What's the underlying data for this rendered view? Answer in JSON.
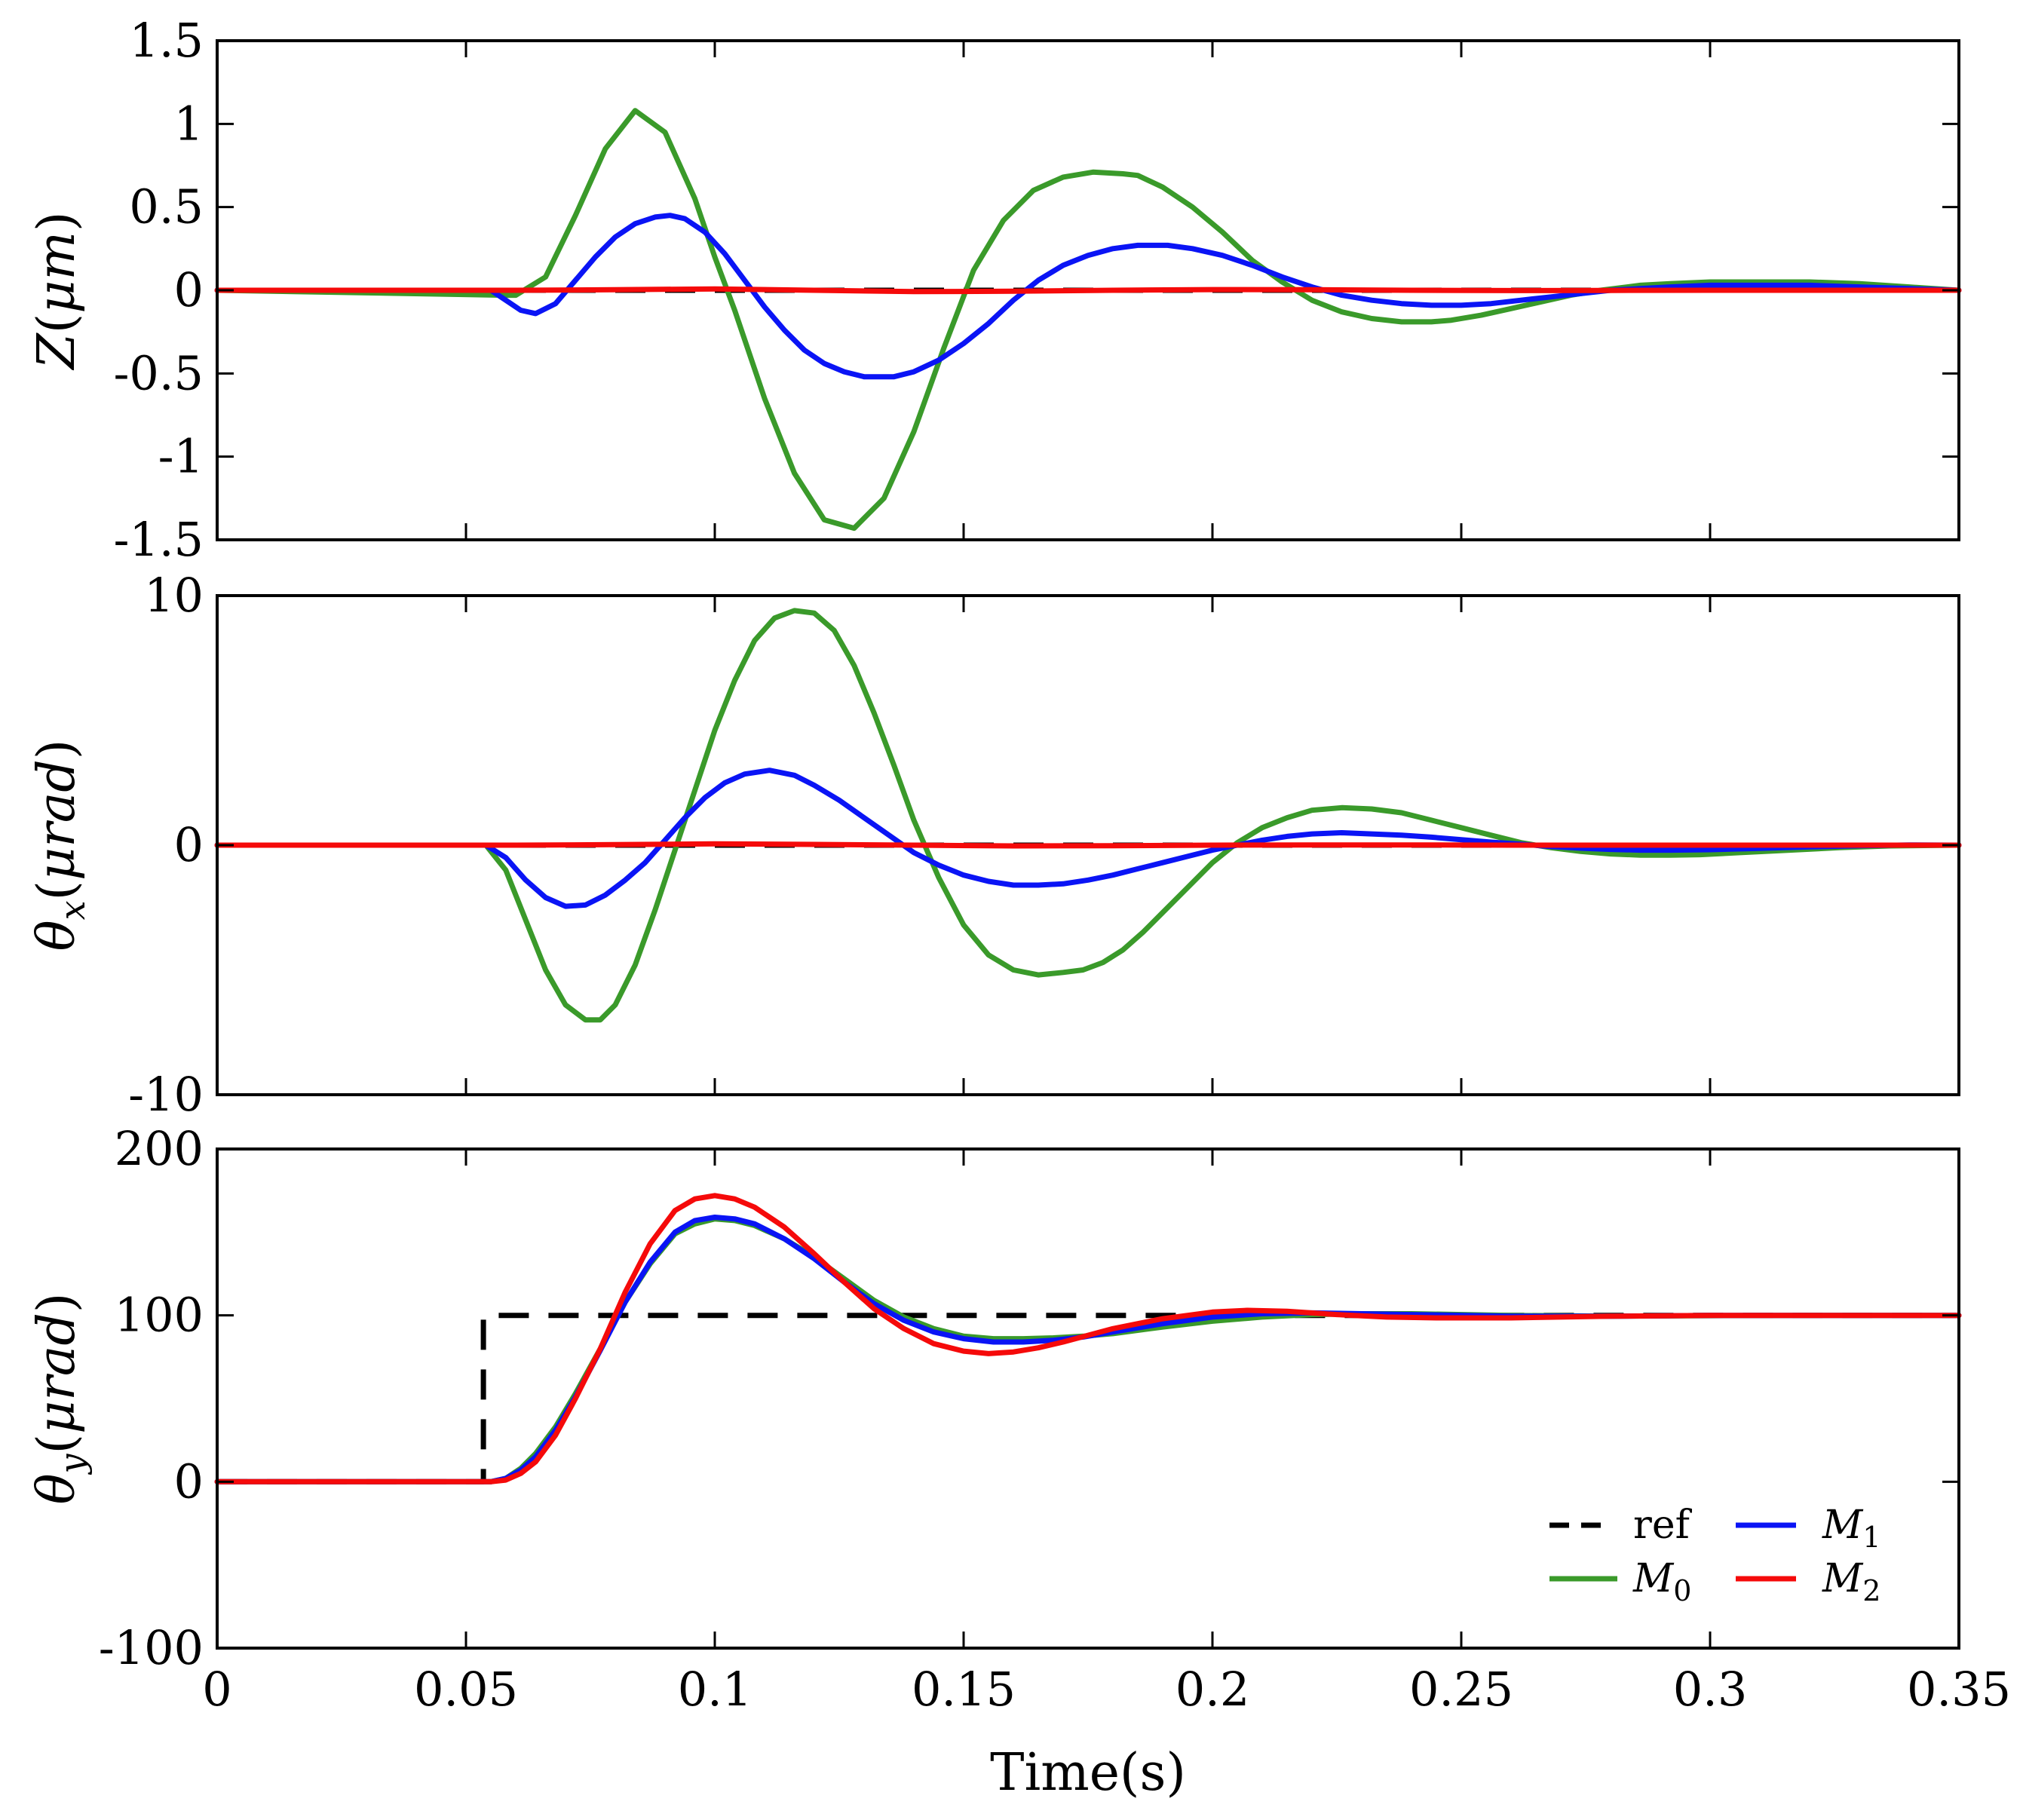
{
  "chart_data": [
    {
      "type": "line",
      "panel": "top",
      "ylabel": "Z(μm)",
      "ylabel_parts": {
        "main": "Z",
        "open": "(",
        "unit": "μm",
        "close": ")"
      },
      "xlim": [
        0,
        0.35
      ],
      "ylim": [
        -1.5,
        1.5
      ],
      "yticks": [
        1.5,
        1,
        0.5,
        0,
        -0.5,
        -1,
        -1.5
      ],
      "ytick_labels": [
        "1.5",
        "1",
        "0.5",
        "0",
        "-0.5",
        "-1",
        "-1.5"
      ],
      "series": [
        {
          "name": "ref",
          "color": "#000000",
          "dashed": true,
          "x": [
            0,
            0.35
          ],
          "y": [
            0,
            0
          ]
        },
        {
          "name": "M0",
          "color": "#3a9a2a",
          "x": [
            0,
            0.058,
            0.06,
            0.066,
            0.072,
            0.078,
            0.084,
            0.09,
            0.096,
            0.1,
            0.104,
            0.11,
            0.116,
            0.122,
            0.128,
            0.134,
            0.14,
            0.146,
            0.152,
            0.158,
            0.164,
            0.17,
            0.176,
            0.182,
            0.185,
            0.19,
            0.196,
            0.202,
            0.208,
            0.214,
            0.22,
            0.226,
            0.232,
            0.238,
            0.244,
            0.248,
            0.254,
            0.26,
            0.266,
            0.272,
            0.278,
            0.286,
            0.292,
            0.3,
            0.31,
            0.32,
            0.33,
            0.34,
            0.35
          ],
          "y": [
            0,
            -0.03,
            -0.03,
            0.08,
            0.45,
            0.85,
            1.08,
            0.95,
            0.55,
            0.2,
            -0.12,
            -0.65,
            -1.1,
            -1.38,
            -1.43,
            -1.25,
            -0.85,
            -0.35,
            0.12,
            0.42,
            0.6,
            0.68,
            0.71,
            0.7,
            0.69,
            0.62,
            0.5,
            0.35,
            0.18,
            0.05,
            -0.06,
            -0.13,
            -0.17,
            -0.19,
            -0.19,
            -0.18,
            -0.15,
            -0.11,
            -0.07,
            -0.03,
            0.0,
            0.03,
            0.04,
            0.05,
            0.05,
            0.05,
            0.04,
            0.02,
            0.0
          ]
        },
        {
          "name": "M1",
          "color": "#0a14f5",
          "x": [
            0,
            0.055,
            0.058,
            0.061,
            0.064,
            0.068,
            0.072,
            0.076,
            0.08,
            0.084,
            0.088,
            0.091,
            0.094,
            0.098,
            0.102,
            0.106,
            0.11,
            0.114,
            0.118,
            0.122,
            0.126,
            0.13,
            0.134,
            0.136,
            0.14,
            0.145,
            0.15,
            0.155,
            0.16,
            0.165,
            0.17,
            0.175,
            0.18,
            0.185,
            0.191,
            0.196,
            0.202,
            0.208,
            0.214,
            0.22,
            0.226,
            0.232,
            0.238,
            0.244,
            0.25,
            0.256,
            0.262,
            0.268,
            0.274,
            0.28,
            0.286,
            0.292,
            0.3,
            0.31,
            0.32,
            0.33,
            0.34,
            0.35
          ],
          "y": [
            0,
            0,
            -0.06,
            -0.12,
            -0.14,
            -0.08,
            0.06,
            0.2,
            0.32,
            0.4,
            0.44,
            0.45,
            0.43,
            0.35,
            0.22,
            0.06,
            -0.1,
            -0.24,
            -0.36,
            -0.44,
            -0.49,
            -0.52,
            -0.52,
            -0.52,
            -0.49,
            -0.42,
            -0.32,
            -0.2,
            -0.06,
            0.06,
            0.15,
            0.21,
            0.25,
            0.27,
            0.27,
            0.25,
            0.21,
            0.15,
            0.08,
            0.02,
            -0.03,
            -0.06,
            -0.08,
            -0.09,
            -0.09,
            -0.08,
            -0.06,
            -0.04,
            -0.02,
            0.0,
            0.01,
            0.02,
            0.03,
            0.03,
            0.03,
            0.02,
            0.01,
            0.0
          ]
        },
        {
          "name": "M2",
          "color": "#f50a0a",
          "x": [
            0,
            0.06,
            0.08,
            0.1,
            0.12,
            0.14,
            0.16,
            0.18,
            0.2,
            0.22,
            0.24,
            0.26,
            0.28,
            0.3,
            0.35
          ],
          "y": [
            0,
            0,
            0.003,
            0.008,
            0.0,
            -0.008,
            -0.006,
            0.0,
            0.004,
            0.003,
            0.0,
            -0.002,
            -0.001,
            0.0,
            0.0
          ]
        }
      ]
    },
    {
      "type": "line",
      "panel": "middle",
      "ylabel": "θx(μrad)",
      "ylabel_parts": {
        "main": "θ",
        "sub": "x",
        "open": "(",
        "unit": "μrad",
        "close": ")"
      },
      "xlim": [
        0,
        0.35
      ],
      "ylim": [
        -10,
        10
      ],
      "yticks": [
        10,
        0,
        -10
      ],
      "ytick_labels": [
        "10",
        "0",
        "-10"
      ],
      "series": [
        {
          "name": "ref",
          "color": "#000000",
          "dashed": true,
          "x": [
            0,
            0.35
          ],
          "y": [
            0,
            0
          ]
        },
        {
          "name": "M0",
          "color": "#3a9a2a",
          "x": [
            0,
            0.054,
            0.058,
            0.062,
            0.066,
            0.07,
            0.074,
            0.077,
            0.08,
            0.084,
            0.088,
            0.092,
            0.096,
            0.1,
            0.104,
            0.108,
            0.112,
            0.116,
            0.12,
            0.124,
            0.128,
            0.132,
            0.136,
            0.14,
            0.145,
            0.15,
            0.155,
            0.16,
            0.165,
            0.17,
            0.174,
            0.178,
            0.182,
            0.186,
            0.19,
            0.195,
            0.2,
            0.205,
            0.21,
            0.215,
            0.22,
            0.226,
            0.232,
            0.238,
            0.244,
            0.25,
            0.256,
            0.262,
            0.268,
            0.274,
            0.28,
            0.286,
            0.292,
            0.298,
            0.306,
            0.316,
            0.326,
            0.336,
            0.35
          ],
          "y": [
            0,
            0,
            -1.0,
            -3.0,
            -5.0,
            -6.4,
            -7.0,
            -7.0,
            -6.4,
            -4.8,
            -2.6,
            -0.2,
            2.2,
            4.6,
            6.6,
            8.2,
            9.1,
            9.4,
            9.3,
            8.6,
            7.2,
            5.3,
            3.2,
            1.0,
            -1.3,
            -3.2,
            -4.4,
            -5.0,
            -5.2,
            -5.1,
            -5.0,
            -4.7,
            -4.2,
            -3.5,
            -2.7,
            -1.7,
            -0.7,
            0.1,
            0.7,
            1.1,
            1.4,
            1.5,
            1.45,
            1.3,
            1.0,
            0.7,
            0.4,
            0.1,
            -0.1,
            -0.25,
            -0.35,
            -0.4,
            -0.4,
            -0.38,
            -0.3,
            -0.2,
            -0.1,
            -0.03,
            0.0
          ]
        },
        {
          "name": "M1",
          "color": "#0a14f5",
          "x": [
            0,
            0.054,
            0.058,
            0.062,
            0.066,
            0.07,
            0.074,
            0.078,
            0.082,
            0.086,
            0.09,
            0.094,
            0.098,
            0.102,
            0.106,
            0.111,
            0.116,
            0.12,
            0.125,
            0.13,
            0.135,
            0.14,
            0.145,
            0.15,
            0.155,
            0.16,
            0.165,
            0.17,
            0.175,
            0.18,
            0.185,
            0.19,
            0.195,
            0.2,
            0.205,
            0.21,
            0.215,
            0.22,
            0.226,
            0.232,
            0.238,
            0.244,
            0.25,
            0.256,
            0.262,
            0.268,
            0.274,
            0.28,
            0.286,
            0.292,
            0.3,
            0.31,
            0.32,
            0.33,
            0.34,
            0.35
          ],
          "y": [
            0,
            0,
            -0.5,
            -1.4,
            -2.1,
            -2.45,
            -2.4,
            -2.0,
            -1.4,
            -0.7,
            0.2,
            1.1,
            1.9,
            2.5,
            2.85,
            3.0,
            2.8,
            2.4,
            1.8,
            1.1,
            0.4,
            -0.3,
            -0.8,
            -1.2,
            -1.45,
            -1.6,
            -1.6,
            -1.55,
            -1.4,
            -1.2,
            -0.95,
            -0.7,
            -0.45,
            -0.2,
            0.0,
            0.2,
            0.35,
            0.45,
            0.5,
            0.45,
            0.4,
            0.32,
            0.22,
            0.12,
            0.04,
            -0.05,
            -0.12,
            -0.17,
            -0.2,
            -0.2,
            -0.18,
            -0.13,
            -0.07,
            -0.02,
            0.01,
            0.0
          ]
        },
        {
          "name": "M2",
          "color": "#f50a0a",
          "x": [
            0,
            0.06,
            0.08,
            0.1,
            0.12,
            0.14,
            0.16,
            0.18,
            0.2,
            0.22,
            0.24,
            0.26,
            0.28,
            0.3,
            0.35
          ],
          "y": [
            0,
            0,
            0.02,
            0.05,
            0.03,
            0.0,
            -0.03,
            -0.02,
            0.0,
            0.01,
            0.01,
            0.0,
            0.0,
            0.0,
            0.0
          ]
        }
      ]
    },
    {
      "type": "line",
      "panel": "bottom",
      "ylabel": "θy(μrad)",
      "ylabel_parts": {
        "main": "θ",
        "sub": "y",
        "open": "(",
        "unit": "μrad",
        "close": ")"
      },
      "xlabel": "Time(s)",
      "xlim": [
        0,
        0.35
      ],
      "ylim": [
        -100,
        200
      ],
      "xticks": [
        0,
        0.05,
        0.1,
        0.15,
        0.2,
        0.25,
        0.3,
        0.35
      ],
      "xtick_labels": [
        "0",
        "0.05",
        "0.1",
        "0.15",
        "0.2",
        "0.25",
        "0.3",
        "0.35"
      ],
      "yticks": [
        200,
        100,
        0,
        -100
      ],
      "ytick_labels": [
        "200",
        "100",
        "0",
        "-100"
      ],
      "legend": {
        "position": "bottom-right",
        "columns": 2
      },
      "series": [
        {
          "name": "ref",
          "color": "#000000",
          "dashed": true,
          "x": [
            0,
            0.0535,
            0.0535,
            0.35
          ],
          "y": [
            0,
            0,
            100,
            100
          ]
        },
        {
          "name": "M0",
          "color": "#3a9a2a",
          "x": [
            0,
            0.055,
            0.058,
            0.061,
            0.064,
            0.068,
            0.072,
            0.077,
            0.082,
            0.087,
            0.092,
            0.096,
            0.1,
            0.104,
            0.108,
            0.114,
            0.12,
            0.126,
            0.132,
            0.138,
            0.144,
            0.15,
            0.156,
            0.162,
            0.168,
            0.174,
            0.18,
            0.19,
            0.2,
            0.21,
            0.22,
            0.23,
            0.24,
            0.26,
            0.28,
            0.3,
            0.32,
            0.35
          ],
          "y": [
            0,
            0,
            2,
            8,
            17,
            33,
            53,
            80,
            108,
            131,
            149,
            155,
            158,
            157,
            154,
            146,
            135,
            122,
            109,
            99,
            92,
            87.5,
            86,
            86,
            86.5,
            87.5,
            89,
            93,
            96.5,
            99,
            100.5,
            101,
            101,
            100,
            99.5,
            99.8,
            100,
            100
          ]
        },
        {
          "name": "M1",
          "color": "#0a14f5",
          "x": [
            0,
            0.055,
            0.058,
            0.061,
            0.064,
            0.068,
            0.072,
            0.077,
            0.082,
            0.087,
            0.092,
            0.096,
            0.1,
            0.104,
            0.108,
            0.114,
            0.12,
            0.126,
            0.132,
            0.138,
            0.144,
            0.15,
            0.156,
            0.162,
            0.168,
            0.174,
            0.18,
            0.19,
            0.2,
            0.21,
            0.22,
            0.23,
            0.24,
            0.26,
            0.28,
            0.3,
            0.32,
            0.35
          ],
          "y": [
            0,
            0,
            2,
            7,
            15,
            31,
            51,
            79,
            108,
            132,
            150,
            157,
            159,
            158,
            155,
            146,
            134,
            120,
            107,
            97,
            90,
            86,
            84,
            84,
            85,
            87,
            90,
            95,
            99,
            101,
            101.5,
            101,
            100.5,
            99.5,
            99.5,
            100,
            100,
            100
          ]
        },
        {
          "name": "M2",
          "color": "#f50a0a",
          "x": [
            0,
            0.055,
            0.058,
            0.061,
            0.064,
            0.068,
            0.072,
            0.077,
            0.082,
            0.087,
            0.092,
            0.096,
            0.1,
            0.104,
            0.108,
            0.114,
            0.12,
            0.126,
            0.132,
            0.138,
            0.144,
            0.15,
            0.155,
            0.16,
            0.165,
            0.17,
            0.175,
            0.18,
            0.19,
            0.2,
            0.207,
            0.215,
            0.225,
            0.235,
            0.245,
            0.26,
            0.28,
            0.3,
            0.32,
            0.35
          ],
          "y": [
            0,
            0,
            1,
            5,
            12,
            28,
            50,
            80,
            114,
            143,
            163,
            170,
            172,
            170,
            165,
            153,
            137,
            120,
            104,
            92,
            83,
            78.5,
            77,
            78,
            80.5,
            84,
            88,
            92,
            98,
            102,
            103,
            102.5,
            100.5,
            99,
            98.5,
            98.5,
            99.5,
            100,
            100,
            100
          ]
        }
      ]
    }
  ],
  "legend": {
    "entries": [
      {
        "key": "ref",
        "label": "ref",
        "color": "#000000",
        "dashed": true
      },
      {
        "key": "M1",
        "label": "M",
        "sub": "1",
        "color": "#0a14f5",
        "dashed": false
      },
      {
        "key": "M0",
        "label": "M",
        "sub": "0",
        "color": "#3a9a2a",
        "dashed": false
      },
      {
        "key": "M2",
        "label": "M",
        "sub": "2",
        "color": "#f50a0a",
        "dashed": false
      }
    ]
  }
}
